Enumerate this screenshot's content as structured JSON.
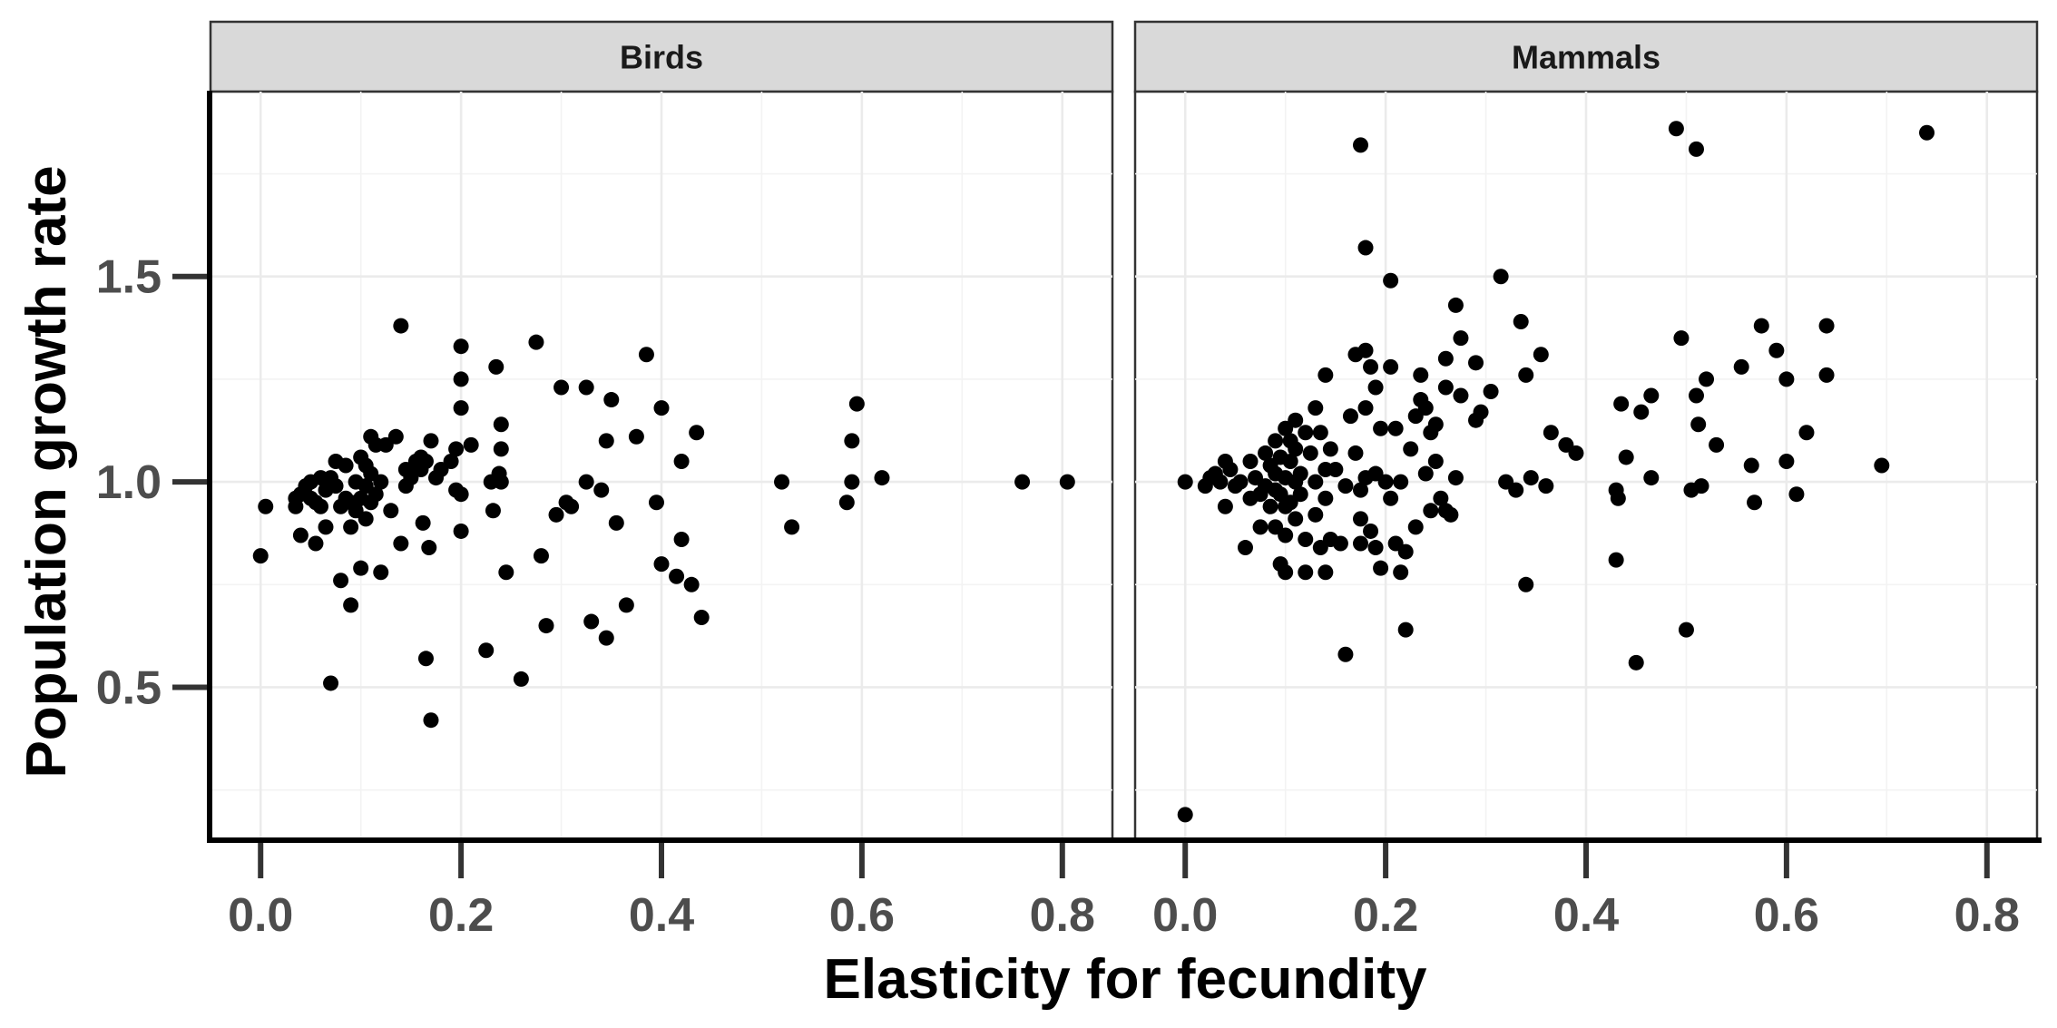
{
  "chart_data": {
    "type": "scatter",
    "xlabel": "Elasticity for fecundity",
    "ylabel": "Population growth rate",
    "xlim": [
      -0.05,
      0.85
    ],
    "ylim": [
      0.13,
      1.95
    ],
    "x_ticks": [
      0.0,
      0.2,
      0.4,
      0.6,
      0.8
    ],
    "x_tick_labels": [
      "0.0",
      "0.2",
      "0.4",
      "0.6",
      "0.8"
    ],
    "y_ticks": [
      0.5,
      1.0,
      1.5
    ],
    "y_tick_labels": [
      "0.5",
      "1.0",
      "1.5"
    ],
    "grid": true,
    "facets": [
      {
        "name": "Birds",
        "points": [
          [
            0.0,
            0.82
          ],
          [
            0.005,
            0.94
          ],
          [
            0.035,
            0.94
          ],
          [
            0.035,
            0.96
          ],
          [
            0.04,
            0.97
          ],
          [
            0.04,
            0.87
          ],
          [
            0.045,
            0.99
          ],
          [
            0.05,
            1.0
          ],
          [
            0.05,
            0.96
          ],
          [
            0.055,
            0.85
          ],
          [
            0.055,
            0.95
          ],
          [
            0.06,
            1.01
          ],
          [
            0.06,
            0.94
          ],
          [
            0.065,
            0.89
          ],
          [
            0.065,
            0.98
          ],
          [
            0.07,
            1.01
          ],
          [
            0.07,
            0.51
          ],
          [
            0.075,
            1.05
          ],
          [
            0.075,
            0.99
          ],
          [
            0.08,
            0.94
          ],
          [
            0.08,
            0.76
          ],
          [
            0.085,
            1.04
          ],
          [
            0.085,
            0.96
          ],
          [
            0.09,
            0.95
          ],
          [
            0.09,
            0.89
          ],
          [
            0.09,
            0.7
          ],
          [
            0.095,
            1.0
          ],
          [
            0.095,
            0.93
          ],
          [
            0.1,
            1.06
          ],
          [
            0.1,
            0.96
          ],
          [
            0.1,
            0.79
          ],
          [
            0.105,
            1.04
          ],
          [
            0.105,
            0.99
          ],
          [
            0.105,
            0.91
          ],
          [
            0.11,
            1.11
          ],
          [
            0.11,
            1.02
          ],
          [
            0.11,
            0.95
          ],
          [
            0.115,
            1.09
          ],
          [
            0.115,
            0.97
          ],
          [
            0.12,
            0.78
          ],
          [
            0.12,
            1.0
          ],
          [
            0.125,
            1.09
          ],
          [
            0.13,
            0.93
          ],
          [
            0.135,
            1.11
          ],
          [
            0.14,
            1.38
          ],
          [
            0.14,
            0.85
          ],
          [
            0.145,
            1.03
          ],
          [
            0.145,
            0.99
          ],
          [
            0.15,
            1.01
          ],
          [
            0.155,
            1.05
          ],
          [
            0.16,
            1.06
          ],
          [
            0.16,
            1.03
          ],
          [
            0.162,
            0.9
          ],
          [
            0.165,
            1.05
          ],
          [
            0.165,
            0.57
          ],
          [
            0.168,
            0.84
          ],
          [
            0.17,
            1.1
          ],
          [
            0.17,
            0.42
          ],
          [
            0.175,
            1.01
          ],
          [
            0.18,
            1.03
          ],
          [
            0.19,
            1.05
          ],
          [
            0.195,
            1.08
          ],
          [
            0.195,
            0.98
          ],
          [
            0.2,
            1.33
          ],
          [
            0.2,
            1.25
          ],
          [
            0.2,
            1.18
          ],
          [
            0.2,
            0.97
          ],
          [
            0.2,
            0.88
          ],
          [
            0.21,
            1.09
          ],
          [
            0.225,
            0.59
          ],
          [
            0.23,
            1.0
          ],
          [
            0.232,
            0.93
          ],
          [
            0.235,
            1.28
          ],
          [
            0.238,
            1.02
          ],
          [
            0.24,
            1.14
          ],
          [
            0.24,
            1.08
          ],
          [
            0.24,
            1.0
          ],
          [
            0.245,
            0.78
          ],
          [
            0.26,
            0.52
          ],
          [
            0.275,
            1.34
          ],
          [
            0.28,
            0.82
          ],
          [
            0.285,
            0.65
          ],
          [
            0.295,
            0.92
          ],
          [
            0.3,
            1.23
          ],
          [
            0.305,
            0.95
          ],
          [
            0.31,
            0.94
          ],
          [
            0.325,
            1.23
          ],
          [
            0.325,
            1.0
          ],
          [
            0.33,
            0.66
          ],
          [
            0.34,
            0.98
          ],
          [
            0.345,
            1.1
          ],
          [
            0.345,
            0.62
          ],
          [
            0.35,
            1.2
          ],
          [
            0.355,
            0.9
          ],
          [
            0.365,
            0.7
          ],
          [
            0.375,
            1.11
          ],
          [
            0.385,
            1.31
          ],
          [
            0.395,
            0.95
          ],
          [
            0.4,
            1.18
          ],
          [
            0.4,
            0.8
          ],
          [
            0.415,
            0.77
          ],
          [
            0.42,
            1.05
          ],
          [
            0.42,
            0.86
          ],
          [
            0.43,
            0.75
          ],
          [
            0.435,
            1.12
          ],
          [
            0.44,
            0.67
          ],
          [
            0.52,
            1.0
          ],
          [
            0.53,
            0.89
          ],
          [
            0.585,
            0.95
          ],
          [
            0.59,
            1.0
          ],
          [
            0.59,
            1.1
          ],
          [
            0.595,
            1.19
          ],
          [
            0.62,
            1.01
          ],
          [
            0.76,
            1.0
          ],
          [
            0.805,
            1.0
          ]
        ]
      },
      {
        "name": "Mammals",
        "points": [
          [
            0.0,
            1.0
          ],
          [
            0.0,
            0.19
          ],
          [
            0.02,
            0.99
          ],
          [
            0.025,
            1.01
          ],
          [
            0.03,
            1.02
          ],
          [
            0.035,
            1.0
          ],
          [
            0.04,
            1.05
          ],
          [
            0.04,
            0.94
          ],
          [
            0.045,
            1.03
          ],
          [
            0.05,
            0.99
          ],
          [
            0.055,
            1.0
          ],
          [
            0.06,
            0.84
          ],
          [
            0.065,
            1.05
          ],
          [
            0.065,
            0.96
          ],
          [
            0.07,
            1.01
          ],
          [
            0.075,
            0.97
          ],
          [
            0.075,
            0.89
          ],
          [
            0.08,
            1.07
          ],
          [
            0.08,
            0.99
          ],
          [
            0.085,
            0.94
          ],
          [
            0.085,
            1.04
          ],
          [
            0.09,
            1.1
          ],
          [
            0.09,
            1.02
          ],
          [
            0.09,
            0.98
          ],
          [
            0.09,
            0.89
          ],
          [
            0.095,
            1.06
          ],
          [
            0.095,
            0.97
          ],
          [
            0.095,
            0.8
          ],
          [
            0.1,
            1.13
          ],
          [
            0.1,
            1.01
          ],
          [
            0.1,
            0.94
          ],
          [
            0.1,
            0.87
          ],
          [
            0.1,
            0.78
          ],
          [
            0.105,
            1.1
          ],
          [
            0.105,
            1.05
          ],
          [
            0.105,
            0.95
          ],
          [
            0.11,
            1.15
          ],
          [
            0.11,
            1.08
          ],
          [
            0.11,
            1.0
          ],
          [
            0.11,
            0.91
          ],
          [
            0.115,
            1.02
          ],
          [
            0.115,
            0.97
          ],
          [
            0.12,
            1.12
          ],
          [
            0.12,
            0.86
          ],
          [
            0.12,
            0.78
          ],
          [
            0.125,
            1.07
          ],
          [
            0.13,
            1.18
          ],
          [
            0.13,
            1.0
          ],
          [
            0.13,
            0.92
          ],
          [
            0.135,
            1.12
          ],
          [
            0.135,
            0.84
          ],
          [
            0.14,
            1.26
          ],
          [
            0.14,
            1.03
          ],
          [
            0.14,
            0.96
          ],
          [
            0.14,
            0.78
          ],
          [
            0.145,
            1.08
          ],
          [
            0.145,
            0.86
          ],
          [
            0.15,
            1.03
          ],
          [
            0.155,
            0.85
          ],
          [
            0.16,
            0.99
          ],
          [
            0.16,
            0.58
          ],
          [
            0.165,
            1.16
          ],
          [
            0.17,
            1.31
          ],
          [
            0.17,
            1.07
          ],
          [
            0.175,
            1.82
          ],
          [
            0.175,
            0.98
          ],
          [
            0.175,
            0.91
          ],
          [
            0.175,
            0.85
          ],
          [
            0.18,
            1.57
          ],
          [
            0.18,
            1.32
          ],
          [
            0.18,
            1.18
          ],
          [
            0.18,
            1.01
          ],
          [
            0.185,
            1.28
          ],
          [
            0.185,
            0.88
          ],
          [
            0.19,
            1.23
          ],
          [
            0.19,
            1.02
          ],
          [
            0.19,
            0.84
          ],
          [
            0.195,
            1.13
          ],
          [
            0.195,
            0.79
          ],
          [
            0.2,
            1.0
          ],
          [
            0.205,
            0.96
          ],
          [
            0.205,
            1.49
          ],
          [
            0.205,
            1.28
          ],
          [
            0.21,
            1.13
          ],
          [
            0.21,
            0.85
          ],
          [
            0.215,
            1.0
          ],
          [
            0.215,
            0.78
          ],
          [
            0.22,
            0.83
          ],
          [
            0.22,
            0.64
          ],
          [
            0.225,
            1.08
          ],
          [
            0.23,
            1.16
          ],
          [
            0.23,
            0.89
          ],
          [
            0.235,
            1.26
          ],
          [
            0.235,
            1.2
          ],
          [
            0.24,
            1.18
          ],
          [
            0.24,
            1.02
          ],
          [
            0.245,
            1.12
          ],
          [
            0.245,
            0.93
          ],
          [
            0.25,
            1.14
          ],
          [
            0.25,
            1.05
          ],
          [
            0.255,
            0.96
          ],
          [
            0.26,
            1.3
          ],
          [
            0.26,
            1.23
          ],
          [
            0.26,
            0.93
          ],
          [
            0.265,
            0.92
          ],
          [
            0.27,
            1.43
          ],
          [
            0.27,
            1.01
          ],
          [
            0.275,
            1.35
          ],
          [
            0.275,
            1.21
          ],
          [
            0.29,
            1.29
          ],
          [
            0.29,
            1.15
          ],
          [
            0.295,
            1.17
          ],
          [
            0.305,
            1.22
          ],
          [
            0.315,
            1.5
          ],
          [
            0.32,
            1.0
          ],
          [
            0.33,
            0.98
          ],
          [
            0.335,
            1.39
          ],
          [
            0.34,
            1.26
          ],
          [
            0.34,
            0.75
          ],
          [
            0.345,
            1.01
          ],
          [
            0.355,
            1.31
          ],
          [
            0.36,
            0.99
          ],
          [
            0.365,
            1.12
          ],
          [
            0.38,
            1.09
          ],
          [
            0.39,
            1.07
          ],
          [
            0.43,
            0.81
          ],
          [
            0.43,
            0.98
          ],
          [
            0.432,
            0.96
          ],
          [
            0.435,
            1.19
          ],
          [
            0.44,
            1.06
          ],
          [
            0.45,
            0.56
          ],
          [
            0.455,
            1.17
          ],
          [
            0.465,
            1.21
          ],
          [
            0.465,
            1.01
          ],
          [
            0.49,
            1.86
          ],
          [
            0.495,
            1.35
          ],
          [
            0.5,
            0.64
          ],
          [
            0.505,
            0.98
          ],
          [
            0.51,
            1.81
          ],
          [
            0.51,
            1.21
          ],
          [
            0.512,
            1.14
          ],
          [
            0.515,
            0.99
          ],
          [
            0.52,
            1.25
          ],
          [
            0.53,
            1.09
          ],
          [
            0.555,
            1.28
          ],
          [
            0.565,
            1.04
          ],
          [
            0.568,
            0.95
          ],
          [
            0.575,
            1.38
          ],
          [
            0.59,
            1.32
          ],
          [
            0.6,
            1.25
          ],
          [
            0.6,
            1.05
          ],
          [
            0.61,
            0.97
          ],
          [
            0.62,
            1.12
          ],
          [
            0.64,
            1.38
          ],
          [
            0.64,
            1.26
          ],
          [
            0.695,
            1.04
          ],
          [
            0.74,
            1.85
          ]
        ]
      }
    ]
  }
}
